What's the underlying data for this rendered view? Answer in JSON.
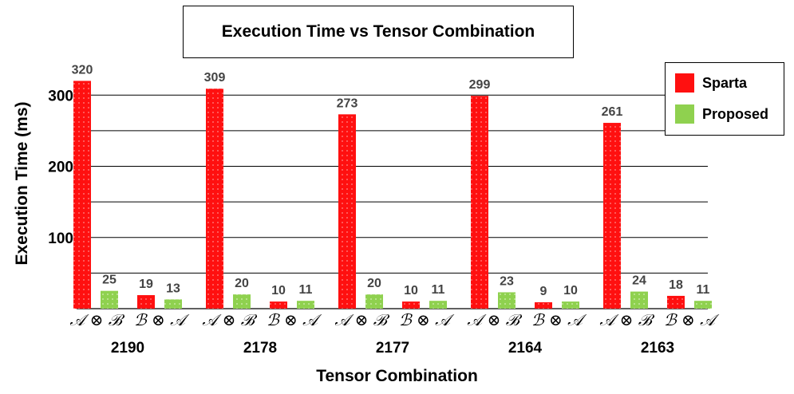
{
  "chart_data": {
    "type": "bar",
    "title": "Execution Time vs Tensor Combination",
    "xlabel": "Tensor Combination",
    "ylabel": "Execution Time (ms)",
    "ylim": [
      0,
      320
    ],
    "yticks": [
      100,
      200,
      300
    ],
    "grid": true,
    "legend_position": "top-right",
    "groups": [
      "2190",
      "2178",
      "2177",
      "2164",
      "2163"
    ],
    "subcategories": [
      "𝒜 ⊗ ℬ",
      "ℬ ⊗ 𝒜"
    ],
    "series": [
      {
        "name": "Sparta",
        "color": "#ff0000",
        "values": [
          [
            320,
            19
          ],
          [
            309,
            10
          ],
          [
            273,
            10
          ],
          [
            299,
            9
          ],
          [
            261,
            18
          ]
        ]
      },
      {
        "name": "Proposed",
        "color": "#8fd14f",
        "values": [
          [
            25,
            13
          ],
          [
            20,
            11
          ],
          [
            20,
            11
          ],
          [
            23,
            10
          ],
          [
            24,
            11
          ]
        ]
      }
    ]
  }
}
